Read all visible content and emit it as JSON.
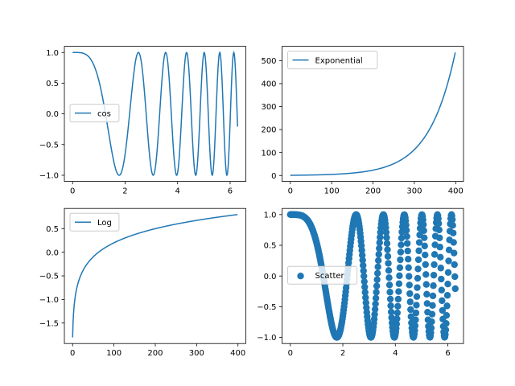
{
  "chart_data": [
    {
      "type": "line",
      "series": [
        {
          "name": "cos",
          "function": "cos(x^2)",
          "x_range": [
            0,
            6.283185
          ],
          "n_points": 400
        }
      ],
      "xlim": [
        -0.314,
        6.597
      ],
      "ylim": [
        -1.1,
        1.1
      ],
      "xticks": [
        0,
        2,
        4,
        6
      ],
      "xtick_labels": [
        "0",
        "2",
        "4",
        "6"
      ],
      "yticks": [
        -1,
        -0.5,
        0,
        0.5,
        1
      ],
      "ytick_labels": [
        "−1.0",
        "−0.5",
        "0.0",
        "0.5",
        "1.0"
      ],
      "legend": "center-left",
      "grid": false,
      "color": "#1f77b4"
    },
    {
      "type": "line",
      "series": [
        {
          "name": "Exponential",
          "function": "exp(x) vs index",
          "x_range": [
            0,
            399
          ],
          "n_points": 400
        }
      ],
      "xlim": [
        -19.95,
        418.95
      ],
      "ylim": [
        -25.7,
        562.2
      ],
      "xticks": [
        0,
        100,
        200,
        300,
        400
      ],
      "xtick_labels": [
        "0",
        "100",
        "200",
        "300",
        "400"
      ],
      "yticks": [
        0,
        100,
        200,
        300,
        400,
        500
      ],
      "ytick_labels": [
        "0",
        "100",
        "200",
        "300",
        "400",
        "500"
      ],
      "legend": "upper-left",
      "grid": false,
      "color": "#1f77b4"
    },
    {
      "type": "line",
      "series": [
        {
          "name": "Log",
          "function": "log10(x) vs index",
          "x_range": [
            0,
            399
          ],
          "n_points": 400
        }
      ],
      "xlim": [
        -19.95,
        418.95
      ],
      "ylim": [
        -1.934,
        0.928
      ],
      "xticks": [
        0,
        100,
        200,
        300,
        400
      ],
      "xtick_labels": [
        "0",
        "100",
        "200",
        "300",
        "400"
      ],
      "yticks": [
        -1.5,
        -1,
        -0.5,
        0,
        0.5
      ],
      "ytick_labels": [
        "−1.5",
        "−1.0",
        "−0.5",
        "0.0",
        "0.5"
      ],
      "legend": "upper-left",
      "grid": false,
      "color": "#1f77b4"
    },
    {
      "type": "scatter",
      "series": [
        {
          "name": "Scatter",
          "function": "cos(x^2)",
          "x_range": [
            0,
            6.283185
          ],
          "n_points": 400
        }
      ],
      "xlim": [
        -0.314,
        6.597
      ],
      "ylim": [
        -1.1,
        1.1
      ],
      "xticks": [
        0,
        2,
        4,
        6
      ],
      "xtick_labels": [
        "0",
        "2",
        "4",
        "6"
      ],
      "yticks": [
        -1,
        -0.5,
        0,
        0.5,
        1
      ],
      "ytick_labels": [
        "−1.0",
        "−0.5",
        "0.0",
        "0.5",
        "1.0"
      ],
      "legend": "center-left",
      "grid": false,
      "color": "#1f77b4"
    }
  ]
}
